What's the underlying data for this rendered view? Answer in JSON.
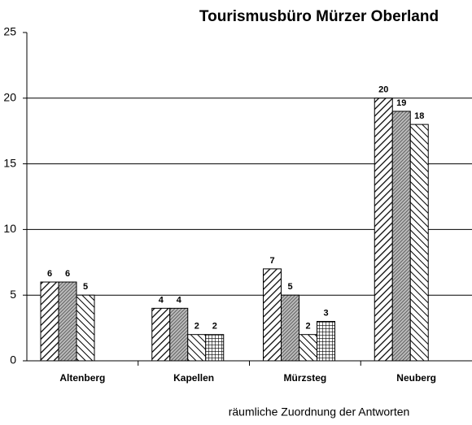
{
  "chart_data": {
    "type": "bar",
    "title": "Tourismusbüro Mürzer Oberland",
    "x_label": "räumliche Zuordnung der Antworten",
    "categories": [
      "Altenberg",
      "Kapellen",
      "Mürzsteg",
      "Neuberg"
    ],
    "series": [
      {
        "color": "#000000",
        "pattern": "hatch-right",
        "values": [
          6,
          4,
          7,
          20
        ]
      },
      {
        "color": "#000000",
        "pattern": "dense",
        "values": [
          6,
          4,
          5,
          19
        ]
      },
      {
        "color": "#000000",
        "pattern": "hatch-left",
        "values": [
          5,
          2,
          2,
          18
        ]
      },
      {
        "color": "#000000",
        "pattern": "grid",
        "values": [
          null,
          2,
          3,
          null
        ]
      }
    ],
    "ylim": [
      0,
      25
    ],
    "yticks": [
      0,
      5,
      10,
      15,
      20,
      25
    ],
    "grid": true,
    "data_labels": true
  }
}
